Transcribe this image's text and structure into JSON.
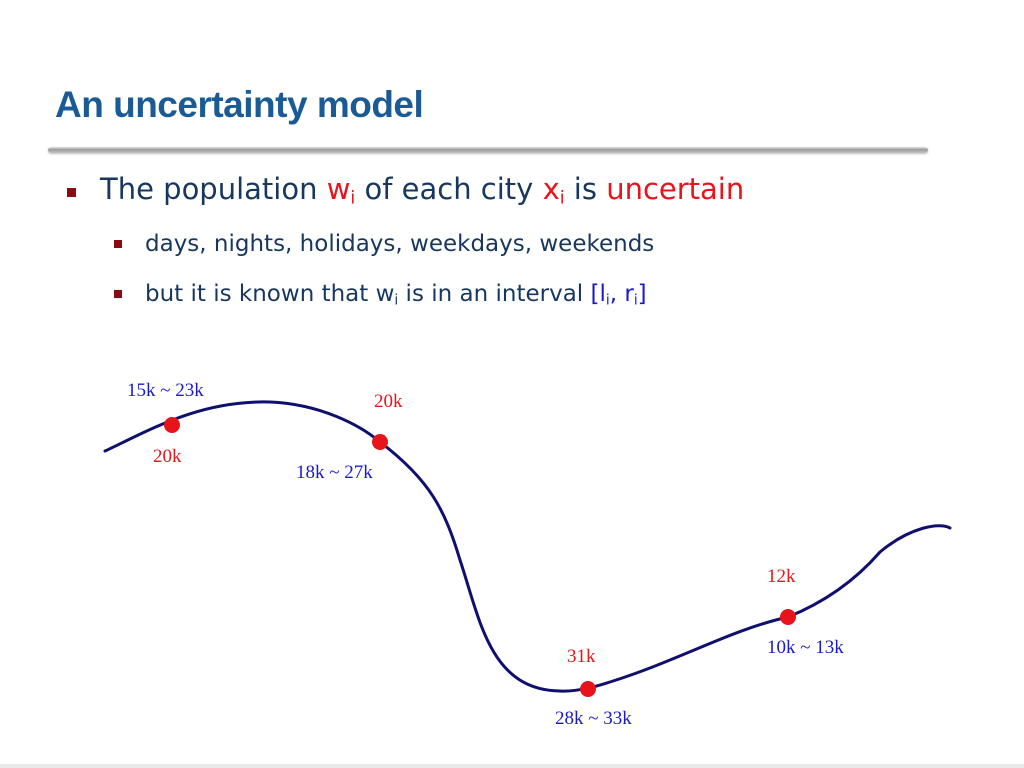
{
  "colors": {
    "title": "#1a5a96",
    "text": "#17375e",
    "highlight": "#e8141c",
    "interval": "#1a1acd",
    "curve": "#0f0f6e",
    "bullet": "#8b0a14"
  },
  "slide": {
    "title": "An uncertainty model"
  },
  "bullets": {
    "main": {
      "p1": "The population ",
      "w": "w",
      "sub_i": "i",
      "p2": " of each city ",
      "x": "x",
      "p3": " is ",
      "uncertain": "uncertain"
    },
    "sub1": "days, nights, holidays, weekdays, weekends",
    "sub2": {
      "p1": "but it is known that w",
      "sub_i": "i",
      "p2": " is in an interval ",
      "open": "[l",
      "mid": ", r",
      "close": "]"
    }
  },
  "cities": [
    {
      "actual": "20k",
      "interval": "15k ~ 23k"
    },
    {
      "actual": "20k",
      "interval": "18k ~ 27k"
    },
    {
      "actual": "31k",
      "interval": "28k ~ 33k"
    },
    {
      "actual": "12k",
      "interval": "10k ~ 13k"
    }
  ]
}
